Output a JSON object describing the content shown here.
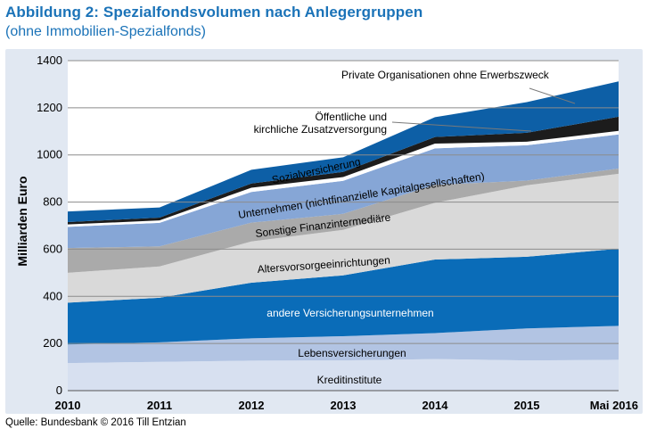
{
  "title": "Abbildung 2: Spezialfondsvolumen nach Anlegergruppen",
  "subtitle": "(ohne Immobilien-Spezialfonds)",
  "source": "Quelle: Bundesbank © 2016 Till Entzian",
  "chart_data": {
    "type": "area",
    "stacked": true,
    "x": [
      "2010",
      "2011",
      "2012",
      "2013",
      "2014",
      "2015",
      "Mai 2016"
    ],
    "ylabel": "Milliarden Euro",
    "ylim": [
      0,
      1400
    ],
    "yticks": [
      0,
      200,
      400,
      600,
      800,
      1000,
      1200,
      1400
    ],
    "grid": "horizontal",
    "series": [
      {
        "name": "Kreditinstitute",
        "color": "#d7e0f0",
        "values": [
          117,
          122,
          127,
          128,
          134,
          128,
          131
        ]
      },
      {
        "name": "Lebensversicherungen",
        "color": "#b2c4e3",
        "values": [
          79,
          83,
          95,
          103,
          110,
          136,
          144
        ]
      },
      {
        "name": "andere Versicherungsunternehmen",
        "color": "#0a6cb8",
        "values": [
          177,
          189,
          236,
          258,
          312,
          304,
          327
        ]
      },
      {
        "name": "Altersvorsorgeeinrichtungen",
        "color": "#d9d9d9",
        "values": [
          127,
          133,
          175,
          193,
          241,
          303,
          318
        ]
      },
      {
        "name": "Sonstige Finanzintermediäre",
        "color": "#aaaaaa",
        "values": [
          105,
          85,
          80,
          68,
          76,
          20,
          22
        ]
      },
      {
        "name": "Unternehmen (nichtfinanzielle Kapitalgesellschaften)",
        "color": "#86a6d6",
        "values": [
          90,
          100,
          130,
          140,
          155,
          150,
          145
        ]
      },
      {
        "name": "Sozialversicherung",
        "color": "#ffffff",
        "values": [
          10,
          10,
          18,
          16,
          20,
          15,
          15
        ]
      },
      {
        "name": "Öffentliche und kirchliche Zusatzversorgung",
        "color": "#1c1c1c",
        "values": [
          10,
          12,
          18,
          22,
          28,
          38,
          60
        ]
      },
      {
        "name": "Private Organisationen ohne Erwerbszweck",
        "color": "#0d5fa6",
        "values": [
          45,
          43,
          58,
          62,
          84,
          130,
          150
        ]
      }
    ],
    "annotations": [
      "Private Organisationen ohne Erwerbszweck",
      "Öffentliche und",
      "kirchliche Zusatzversorgung",
      "Sozialversicherung",
      "Unternehmen (nichtfinanzielle Kapitalgesellschaften)",
      "Sonstige Finanzintermediäre",
      "Altersvorsorgeeinrichtungen",
      "andere Versicherungsunternehmen",
      "Lebensversicherungen",
      "Kreditinstitute"
    ],
    "colors": {
      "frame_background": "#e1e8f2",
      "plot_background": "#ffffff",
      "title": "#1b73b8"
    }
  }
}
